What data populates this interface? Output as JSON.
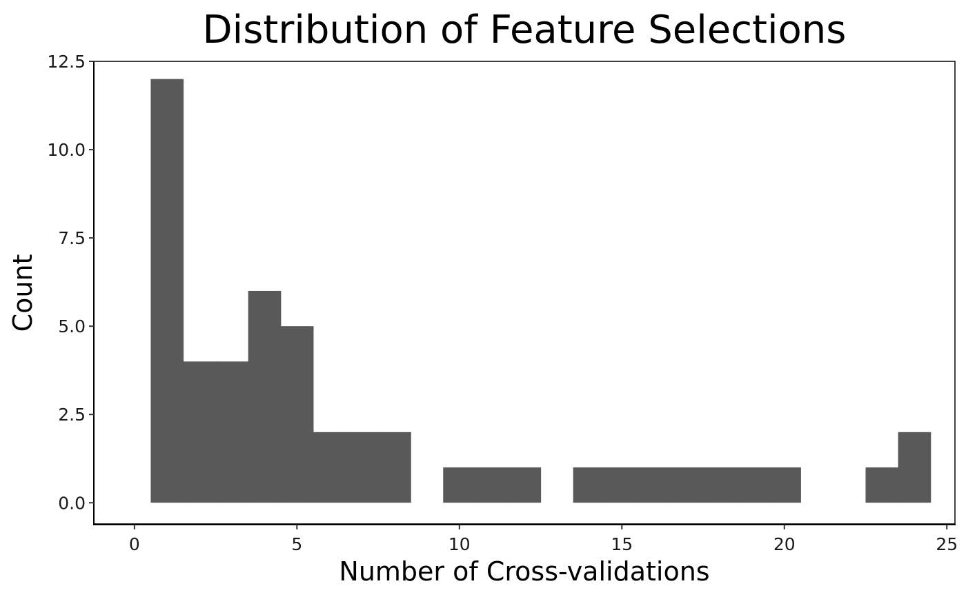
{
  "chart_data": {
    "type": "histogram",
    "title": "Distribution of Feature Selections",
    "xlabel": "Number of Cross-validations",
    "ylabel": "Count",
    "xlim": [
      -1.25,
      25.25
    ],
    "ylim": [
      -0.6,
      12.5
    ],
    "x_ticks": [
      0,
      5,
      10,
      15,
      20,
      25
    ],
    "x_tick_labels": [
      "0",
      "5",
      "10",
      "15",
      "20",
      "25"
    ],
    "y_ticks": [
      0,
      2.5,
      5,
      7.5,
      10,
      12.5
    ],
    "y_tick_labels": [
      "0.0",
      "2.5",
      "5.0",
      "7.5",
      "10.0",
      "12.5"
    ],
    "bin_width": 1,
    "bins": [
      {
        "x": 1,
        "count": 12
      },
      {
        "x": 2,
        "count": 4
      },
      {
        "x": 3,
        "count": 4
      },
      {
        "x": 4,
        "count": 6
      },
      {
        "x": 5,
        "count": 5
      },
      {
        "x": 6,
        "count": 2
      },
      {
        "x": 7,
        "count": 2
      },
      {
        "x": 8,
        "count": 2
      },
      {
        "x": 9,
        "count": 0
      },
      {
        "x": 10,
        "count": 1
      },
      {
        "x": 11,
        "count": 1
      },
      {
        "x": 12,
        "count": 1
      },
      {
        "x": 13,
        "count": 0
      },
      {
        "x": 14,
        "count": 1
      },
      {
        "x": 15,
        "count": 1
      },
      {
        "x": 16,
        "count": 1
      },
      {
        "x": 17,
        "count": 1
      },
      {
        "x": 18,
        "count": 1
      },
      {
        "x": 19,
        "count": 1
      },
      {
        "x": 20,
        "count": 1
      },
      {
        "x": 21,
        "count": 0
      },
      {
        "x": 22,
        "count": 0
      },
      {
        "x": 23,
        "count": 1
      },
      {
        "x": 24,
        "count": 2
      }
    ],
    "bar_color": "#595959",
    "grid": false,
    "legend": "none"
  }
}
